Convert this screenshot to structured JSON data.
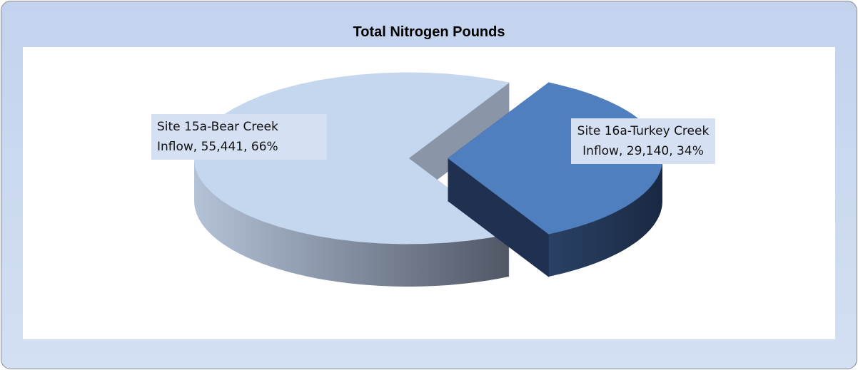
{
  "chart_data": {
    "type": "pie",
    "title": "Total Nitrogen Pounds",
    "values": [
      55441,
      29140
    ],
    "value_labels": [
      "Site 15a-Bear Creek Inflow, 55,441, 66%",
      "Site 16a-Turkey Creek Inflow, 29,140, 34%"
    ],
    "colors": [
      "#c5d6ef",
      "#4f7fbf"
    ],
    "side_colors": [
      "#8a96a8",
      "#1f3050"
    ]
  }
}
